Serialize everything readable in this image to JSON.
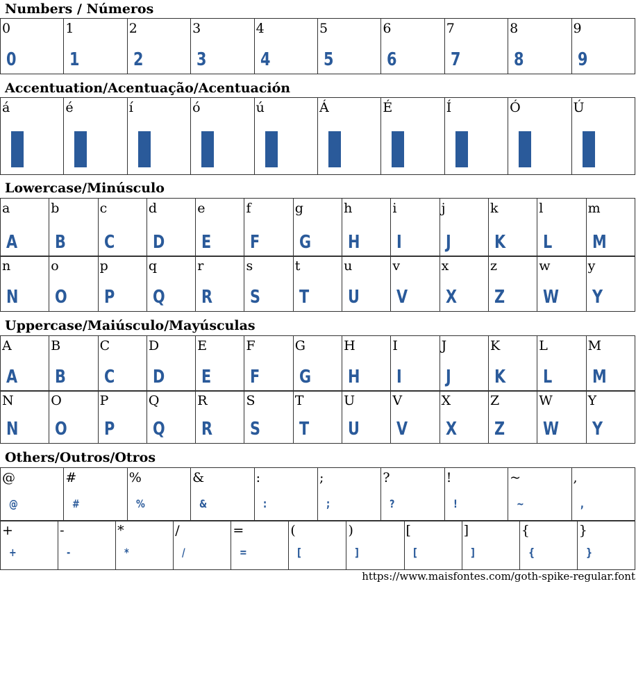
{
  "glyph_color": "#2a5a9a",
  "sections": [
    {
      "title": "Numbers / Números",
      "rows": [
        [
          "0",
          "1",
          "2",
          "3",
          "4",
          "5",
          "6",
          "7",
          "8",
          "9"
        ]
      ],
      "glyphs": [
        [
          "0",
          "1",
          "2",
          "3",
          "4",
          "5",
          "6",
          "7",
          "8",
          "9"
        ]
      ]
    },
    {
      "title": "Accentuation/Acentuação/Acentuación",
      "rows": [
        [
          "á",
          "é",
          "í",
          "ó",
          "ú",
          "Á",
          "É",
          "Í",
          "Ó",
          "Ú"
        ]
      ],
      "glyphs": [
        [
          "",
          "",
          "",
          "",
          "",
          "",
          "",
          "",
          "",
          ""
        ]
      ]
    },
    {
      "title": "Lowercase/Minúsculo",
      "rows": [
        [
          "a",
          "b",
          "c",
          "d",
          "e",
          "f",
          "g",
          "h",
          "i",
          "j",
          "k",
          "l",
          "m"
        ],
        [
          "n",
          "o",
          "p",
          "q",
          "r",
          "s",
          "t",
          "u",
          "v",
          "x",
          "z",
          "w",
          "y"
        ]
      ],
      "glyphs": [
        [
          "A",
          "B",
          "C",
          "D",
          "E",
          "F",
          "G",
          "H",
          "I",
          "J",
          "K",
          "L",
          "M"
        ],
        [
          "N",
          "O",
          "P",
          "Q",
          "R",
          "S",
          "T",
          "U",
          "V",
          "X",
          "Z",
          "W",
          "Y"
        ]
      ]
    },
    {
      "title": "Uppercase/Maiúsculo/Mayúsculas",
      "rows": [
        [
          "A",
          "B",
          "C",
          "D",
          "E",
          "F",
          "G",
          "H",
          "I",
          "J",
          "K",
          "L",
          "M"
        ],
        [
          "N",
          "O",
          "P",
          "Q",
          "R",
          "S",
          "T",
          "U",
          "V",
          "X",
          "Z",
          "W",
          "Y"
        ]
      ],
      "glyphs": [
        [
          "A",
          "B",
          "C",
          "D",
          "E",
          "F",
          "G",
          "H",
          "I",
          "J",
          "K",
          "L",
          "M"
        ],
        [
          "N",
          "O",
          "P",
          "Q",
          "R",
          "S",
          "T",
          "U",
          "V",
          "X",
          "Z",
          "W",
          "Y"
        ]
      ]
    },
    {
      "title": "Others/Outros/Otros",
      "rows": [
        [
          "@",
          "#",
          "%",
          "&",
          ":",
          ";",
          "?",
          "!",
          "~",
          ","
        ],
        [
          "+",
          "-",
          "*",
          "/",
          "=",
          "(",
          ")",
          "[",
          "]",
          "{",
          "}"
        ]
      ],
      "glyphs": [
        [
          "@",
          "#",
          "%",
          "&",
          ":",
          ";",
          "?",
          "!",
          "~",
          ","
        ],
        [
          "+",
          "-",
          "*",
          "/",
          "=",
          "[",
          "]",
          "[",
          "]",
          "{",
          "}"
        ]
      ]
    }
  ],
  "footer_url": "https://www.maisfontes.com/goth-spike-regular.font"
}
